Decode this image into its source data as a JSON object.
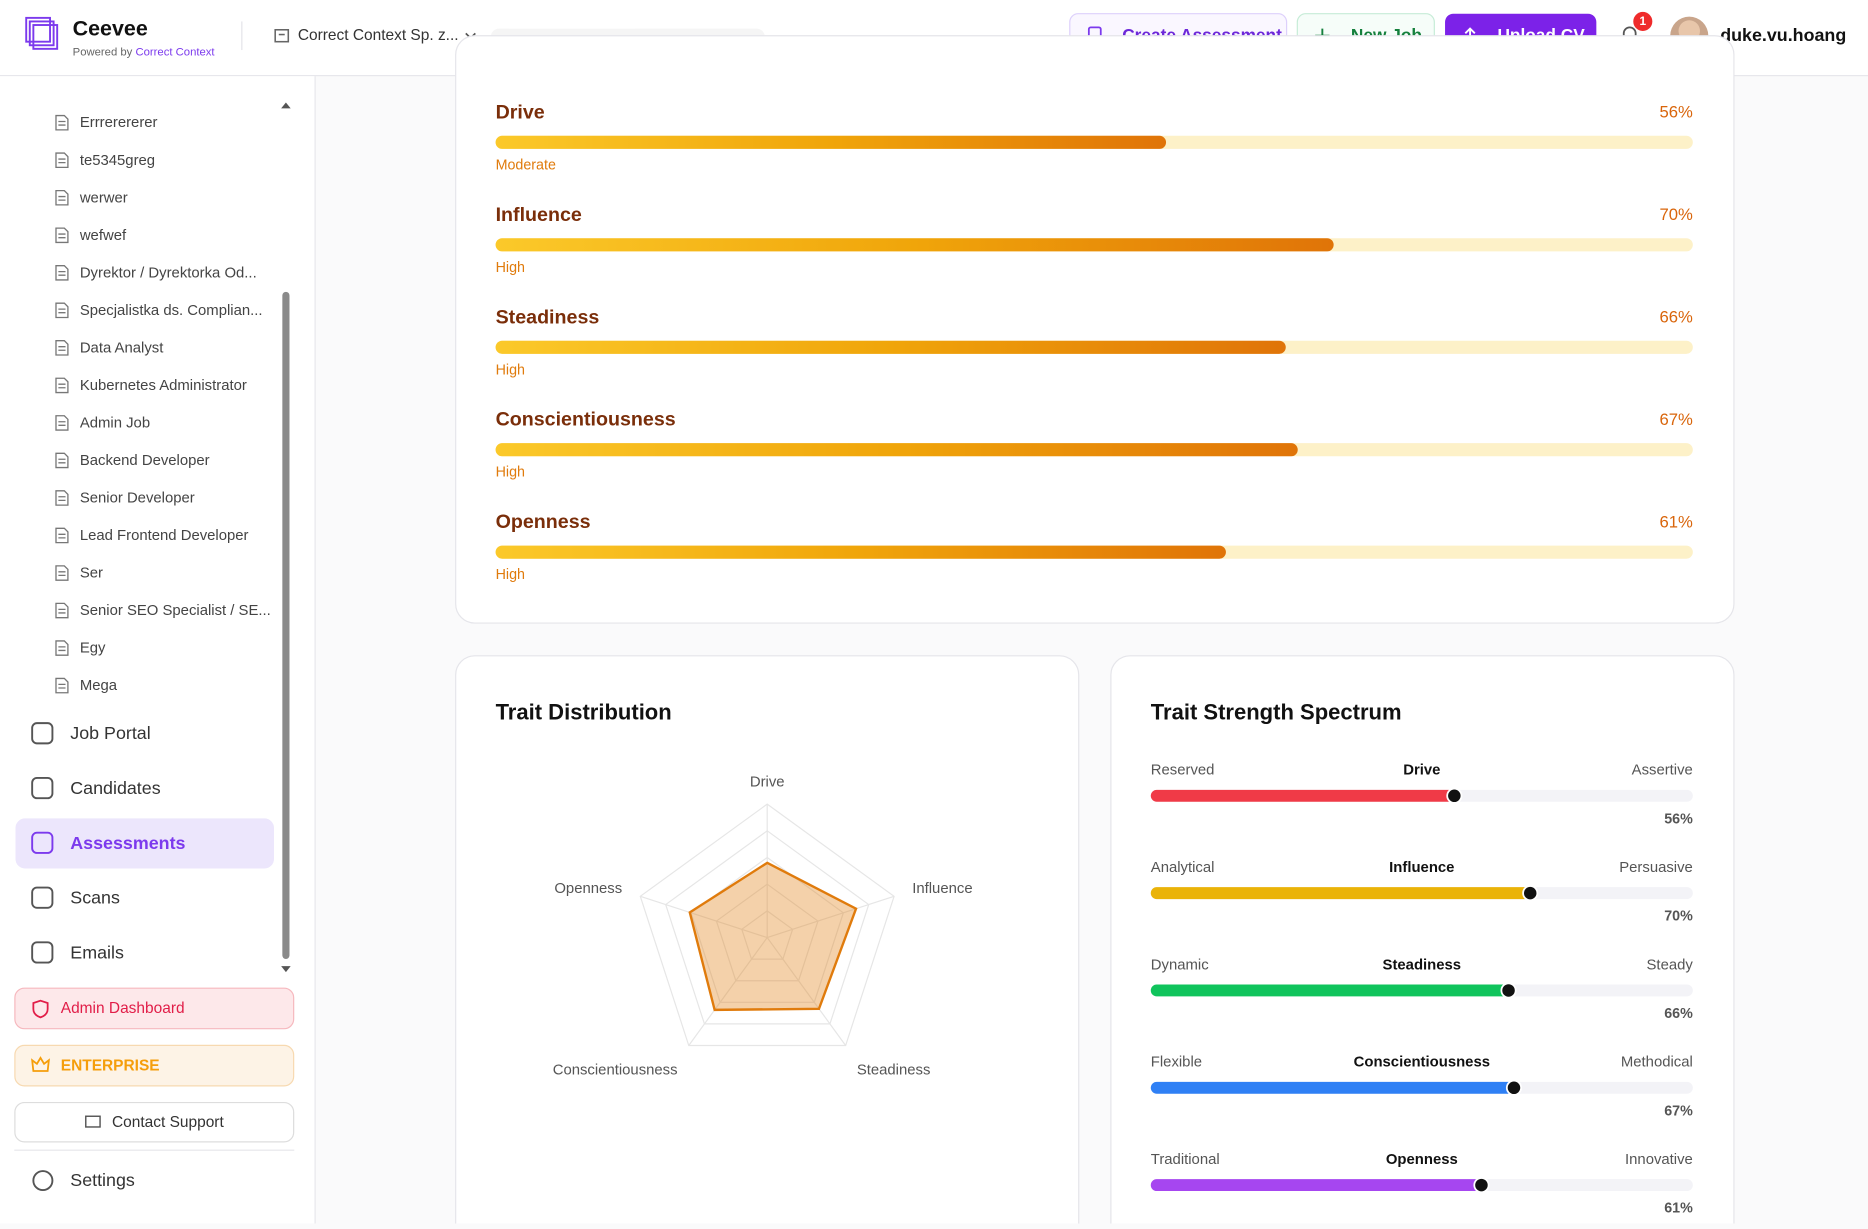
{
  "header": {
    "brand": "Ceevee",
    "powered_by": "Powered by",
    "powered_name": "Correct Context",
    "organization": "Correct Context Sp. z...",
    "create_assessment": "Create Assessment",
    "new_job": "New Job",
    "upload_cv": "Upload CV",
    "notifications": "1",
    "user": "duke.vu.hoang"
  },
  "sidebar": {
    "jobs": [
      "Errrerererer",
      "te5345greg",
      "werwer",
      "wefwef",
      "Dyrektor / Dyrektorka Od...",
      "Specjalistka ds. Complian...",
      "Data Analyst",
      "Kubernetes Administrator",
      "Admin Job",
      "Backend Developer",
      "Senior Developer",
      "Lead Frontend Developer",
      "Ser",
      "Senior SEO Specialist / SE...",
      "Egy",
      "Mega"
    ],
    "nav": [
      "Job Portal",
      "Candidates",
      "Assessments",
      "Scans",
      "Emails"
    ],
    "active": "Assessments",
    "admin": "Admin Dashboard",
    "plan": "ENTERPRISE",
    "support": "Contact Support",
    "settings": "Settings"
  },
  "trait_scores": {
    "xlim": [
      0,
      100
    ],
    "traits": [
      {
        "name": "Drive",
        "value": 56,
        "value_label": "56%",
        "level": "Moderate"
      },
      {
        "name": "Influence",
        "value": 70,
        "value_label": "70%",
        "level": "High"
      },
      {
        "name": "Steadiness",
        "value": 66,
        "value_label": "66%",
        "level": "High"
      },
      {
        "name": "Conscientiousness",
        "value": 67,
        "value_label": "67%",
        "level": "High"
      },
      {
        "name": "Openness",
        "value": 61,
        "value_label": "61%",
        "level": "High"
      }
    ]
  },
  "chart_data": [
    {
      "type": "radar",
      "title": "Trait Distribution",
      "categories": [
        "Drive",
        "Influence",
        "Steadiness",
        "Conscientiousness",
        "Openness"
      ],
      "values": [
        56,
        70,
        66,
        67,
        61
      ],
      "rlim": [
        0,
        100
      ],
      "rticks": [
        20,
        40,
        60,
        80,
        100
      ],
      "color": "#e07b0c"
    },
    {
      "type": "spectrum",
      "title": "Trait Strength Spectrum",
      "xlim": [
        0,
        100
      ],
      "series": [
        {
          "name": "Drive",
          "left": "Reserved",
          "right": "Assertive",
          "color": "#f03a47",
          "value": 56,
          "value_label": "56%"
        },
        {
          "name": "Influence",
          "left": "Analytical",
          "right": "Persuasive",
          "color": "#eab308",
          "value": 70,
          "value_label": "70%"
        },
        {
          "name": "Steadiness",
          "left": "Dynamic",
          "right": "Steady",
          "color": "#10c45c",
          "value": 66,
          "value_label": "66%"
        },
        {
          "name": "Conscientiousness",
          "left": "Flexible",
          "right": "Methodical",
          "color": "#2f80f5",
          "value": 67,
          "value_label": "67%"
        },
        {
          "name": "Openness",
          "left": "Traditional",
          "right": "Innovative",
          "color": "#a646f0",
          "value": 61,
          "value_label": "61%"
        }
      ]
    }
  ]
}
